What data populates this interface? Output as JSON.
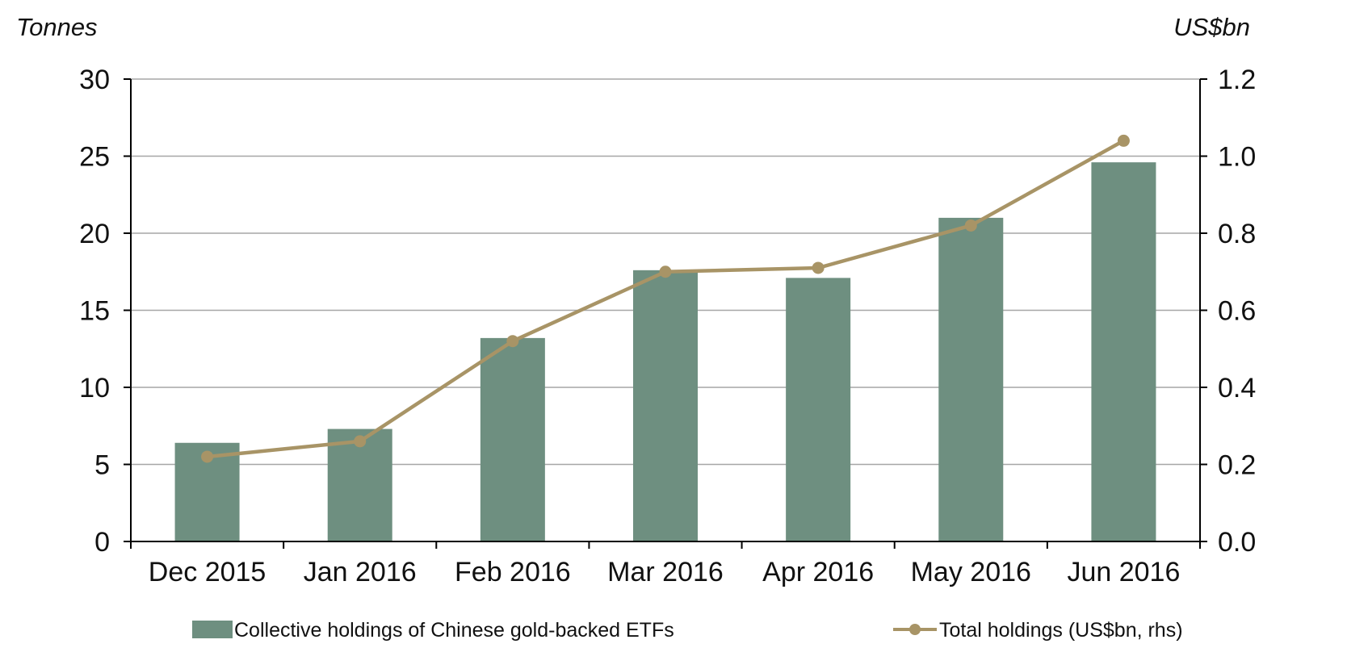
{
  "chart_data": {
    "type": "bar",
    "categories": [
      "Dec 2015",
      "Jan 2016",
      "Feb 2016",
      "Mar 2016",
      "Apr 2016",
      "May 2016",
      "Jun 2016"
    ],
    "series": [
      {
        "name": "Collective holdings of Chinese gold-backed ETFs",
        "type": "bar",
        "axis": "left",
        "values": [
          6.4,
          7.3,
          13.2,
          17.6,
          17.1,
          21.0,
          24.6
        ]
      },
      {
        "name": "Total holdings (US$bn, rhs)",
        "type": "line",
        "axis": "right",
        "values": [
          0.22,
          0.26,
          0.52,
          0.7,
          0.71,
          0.82,
          1.04
        ]
      }
    ],
    "ylabel_left": "Tonnes",
    "ylabel_right": "US$bn",
    "ylim_left": [
      0,
      30
    ],
    "ylim_right": [
      0,
      1.2
    ],
    "yticks_left": [
      "0",
      "5",
      "10",
      "15",
      "20",
      "25",
      "30"
    ],
    "yticks_right": [
      "0.0",
      "0.2",
      "0.4",
      "0.6",
      "0.8",
      "1.0",
      "1.2"
    ],
    "grid": true,
    "legend_position": "bottom",
    "colors": {
      "bar": "#6e8f80",
      "line": "#a89466",
      "grid": "#a6a6a6",
      "axis": "#000000"
    }
  }
}
